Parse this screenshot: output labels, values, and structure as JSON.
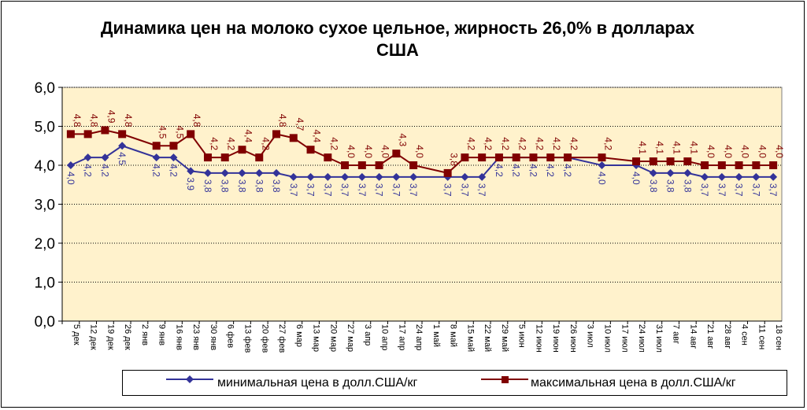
{
  "chart_data": {
    "type": "line",
    "title": "Динамика цен на молоко сухое цельное, жирность 26,0%  в долларах США",
    "categories": [
      "5 дек",
      "12 дек",
      "19 дек",
      "26 дек",
      "2 янв",
      "9 янв",
      "16 янв",
      "23 янв",
      "30 янв",
      "6 фев",
      "13 фев",
      "20 фев",
      "27 фев",
      "6 мар",
      "13 мар",
      "20 мар",
      "27 мар",
      "3 апр",
      "10 апр",
      "17 апр",
      "24 апр",
      "1 май",
      "8 май",
      "15 май",
      "22 май",
      "29 май",
      "5 июн",
      "12 июн",
      "19 июн",
      "26 июн",
      "3 июл",
      "10 июл",
      "17 июл",
      "24 июл",
      "31 июл",
      "7 авг",
      "14 авг",
      "21 авг",
      "28 авг",
      "4 сен",
      "11 сен",
      "18 сен"
    ],
    "ylim": [
      0,
      6
    ],
    "yticks": [
      "0,0",
      "1,0",
      "2,0",
      "3,0",
      "4,0",
      "5,0",
      "6,0"
    ],
    "grid": true,
    "legend_position": "bottom",
    "series": [
      {
        "name": "минимальная цена в долл.США/кг",
        "color": "#333399",
        "marker": "diamond",
        "values": [
          4.0,
          4.2,
          4.2,
          4.5,
          null,
          4.2,
          4.2,
          3.85,
          3.8,
          3.8,
          3.8,
          3.8,
          3.8,
          3.7,
          3.7,
          3.7,
          3.7,
          3.7,
          3.7,
          3.7,
          3.7,
          null,
          3.7,
          3.7,
          3.7,
          4.2,
          4.2,
          4.2,
          4.2,
          4.2,
          null,
          4.0,
          null,
          4.0,
          3.8,
          3.8,
          3.8,
          3.7,
          3.7,
          3.7,
          3.7,
          3.7
        ],
        "labels": [
          "4,0",
          "4,2",
          "4,2",
          "4,5",
          "",
          "4,2",
          "4,2",
          "3,9",
          "3,8",
          "3,8",
          "3,8",
          "3,8",
          "3,8",
          "3,7",
          "3,7",
          "3,7",
          "3,7",
          "3,7",
          "3,7",
          "3,7",
          "3,7",
          "",
          "3,7",
          "3,7",
          "3,7",
          "4,2",
          "4,2",
          "4,2",
          "4,2",
          "4,2",
          "",
          "4,0",
          "",
          "4,0",
          "3,8",
          "3,8",
          "3,8",
          "3,7",
          "3,7",
          "3,7",
          "3,7",
          "3,7"
        ]
      },
      {
        "name": "максимальная цена в долл.США/кг",
        "color": "#800000",
        "marker": "square",
        "values": [
          4.8,
          4.8,
          4.9,
          4.8,
          null,
          4.5,
          4.5,
          4.8,
          4.2,
          4.2,
          4.4,
          4.2,
          4.8,
          4.7,
          4.4,
          4.2,
          4.0,
          4.0,
          4.0,
          4.3,
          4.0,
          null,
          3.8,
          4.2,
          4.2,
          4.2,
          4.2,
          4.2,
          4.2,
          4.2,
          null,
          4.2,
          null,
          4.1,
          4.1,
          4.1,
          4.1,
          4.0,
          4.0,
          4.0,
          4.0,
          4.0
        ],
        "labels": [
          "4,8",
          "4,8",
          "4,9",
          "4,8",
          "",
          "4,5",
          "4,5",
          "4,8",
          "4,2",
          "4,2",
          "4,4",
          "4,2",
          "4,8",
          "4,7",
          "4,4",
          "4,2",
          "4,0",
          "4,0",
          "4,0",
          "4,3",
          "4,0",
          "",
          "3,8",
          "4,2",
          "4,2",
          "4,2",
          "4,2",
          "4,2",
          "4,2",
          "4,2",
          "",
          "4,2",
          "",
          "4,1",
          "4,1",
          "4,1",
          "4,1",
          "4,0",
          "4,0",
          "4,0",
          "4,0",
          "4,0"
        ]
      }
    ]
  }
}
